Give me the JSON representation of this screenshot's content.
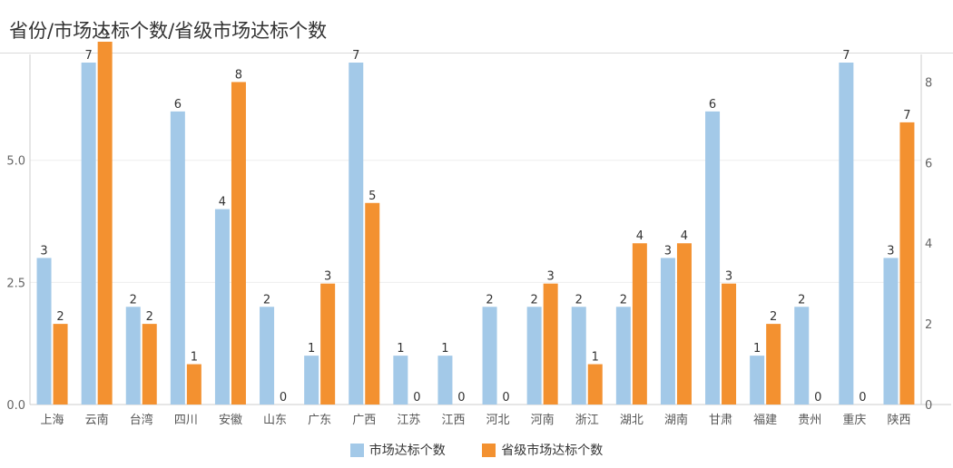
{
  "colors": {
    "market": "#a3c9e8",
    "province": "#f39130"
  },
  "chart_data": {
    "type": "bar",
    "title": "省份/市场达标个数/省级市场达标个数",
    "categories": [
      "上海",
      "云南",
      "台湾",
      "四川",
      "安徽",
      "山东",
      "广东",
      "广西",
      "江苏",
      "江西",
      "河北",
      "河南",
      "浙江",
      "湖北",
      "湖南",
      "甘肃",
      "福建",
      "贵州",
      "重庆",
      "陕西"
    ],
    "series": [
      {
        "name": "市场达标个数",
        "axis": "left",
        "values": [
          3,
          7,
          2,
          6,
          4,
          2,
          1,
          7,
          1,
          1,
          2,
          2,
          2,
          2,
          3,
          6,
          1,
          2,
          7,
          3
        ]
      },
      {
        "name": "省级市场达标个数",
        "axis": "right",
        "values": [
          2,
          9,
          2,
          1,
          8,
          0,
          3,
          5,
          0,
          0,
          0,
          3,
          1,
          4,
          4,
          3,
          2,
          0,
          0,
          7
        ]
      }
    ],
    "y_left": {
      "ylim": [
        0,
        7
      ],
      "ticks": [
        "0.0",
        "2.5",
        "5.0"
      ],
      "tick_values": [
        0,
        2.5,
        5
      ]
    },
    "y_right": {
      "ylim": [
        0,
        9
      ],
      "ticks": [
        "0",
        "2",
        "4",
        "6",
        "8"
      ],
      "tick_values": [
        0,
        2,
        4,
        6,
        8
      ]
    },
    "legend_position": "bottom-center"
  }
}
